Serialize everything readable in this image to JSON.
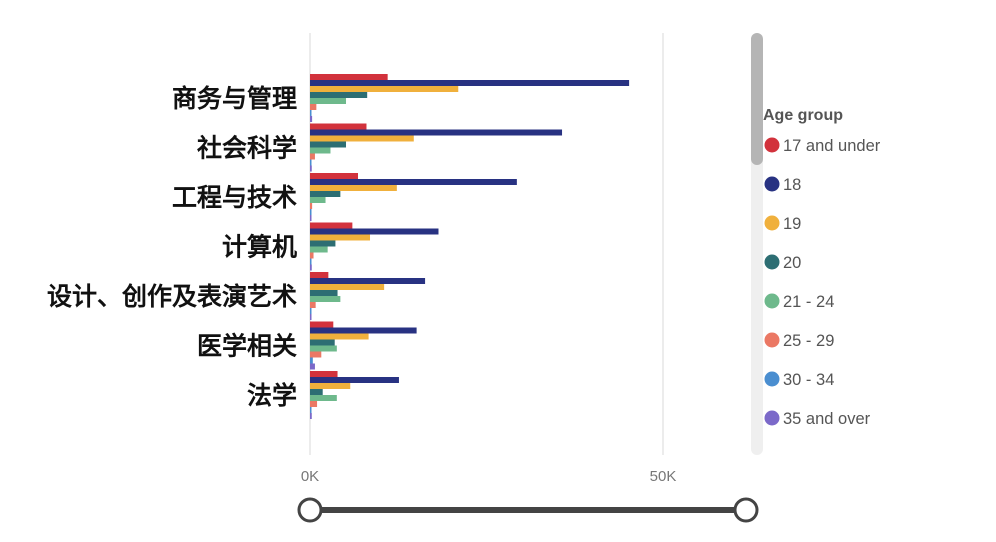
{
  "chart_data": {
    "type": "bar",
    "orientation": "horizontal",
    "categories": [
      "商务与管理",
      "社会科学",
      "工程与技术",
      "计算机",
      "设计、创作及表演艺术",
      "医学相关",
      "法学"
    ],
    "series": [
      {
        "name": "17 and under",
        "color": "#d2323c",
        "values": [
          11000,
          8000,
          6800,
          6000,
          2600,
          3300,
          3900
        ]
      },
      {
        "name": "18",
        "color": "#283282",
        "values": [
          45200,
          35700,
          29300,
          18200,
          16300,
          15100,
          12600
        ]
      },
      {
        "name": "19",
        "color": "#f0b03c",
        "values": [
          21000,
          14700,
          12300,
          8500,
          10500,
          8300,
          5700
        ]
      },
      {
        "name": "20",
        "color": "#2d6e73",
        "values": [
          8100,
          5100,
          4300,
          3600,
          3900,
          3500,
          1800
        ]
      },
      {
        "name": "21 - 24",
        "color": "#6eb98c",
        "values": [
          5100,
          2900,
          2200,
          2500,
          4300,
          3800,
          3800
        ]
      },
      {
        "name": "25 - 29",
        "color": "#eb7864",
        "values": [
          900,
          700,
          300,
          500,
          800,
          1600,
          1000
        ]
      },
      {
        "name": "30 - 34",
        "color": "#4a8ed0",
        "values": [
          200,
          200,
          150,
          200,
          150,
          400,
          200
        ]
      },
      {
        "name": "35 and over",
        "color": "#7b69c9",
        "values": [
          300,
          250,
          200,
          250,
          200,
          700,
          250
        ]
      }
    ],
    "x_ticks": [
      {
        "value": 0,
        "label": "0K"
      },
      {
        "value": 50000,
        "label": "50K"
      }
    ],
    "xlim": [
      0,
      62000
    ],
    "legend": {
      "title": "Age group",
      "placement": "right"
    },
    "grid": "vertical",
    "slider": {
      "start": 0,
      "end": 1
    }
  }
}
